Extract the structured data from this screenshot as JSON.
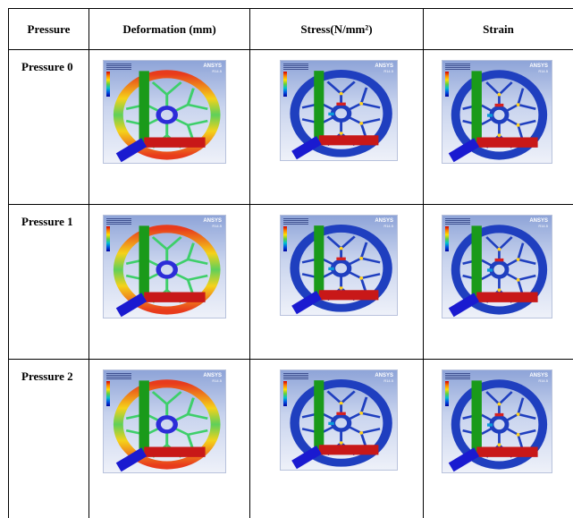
{
  "table": {
    "headers": [
      "Pressure",
      "Deformation (mm)",
      "Stress(N/mm²)",
      "Strain"
    ],
    "rows": [
      {
        "label": "Pressure 0"
      },
      {
        "label": "Pressure 1"
      },
      {
        "label": "Pressure 2"
      }
    ],
    "brand": "ANSYS",
    "brand_version": "R14.5"
  },
  "colors": {
    "deformation_rim": "#e83b1c",
    "deformation_spoke": "#3ecf6a",
    "stress_body": "#1f3fbf",
    "stress_hotspot": "#ffd21f",
    "strain_body": "#1f3fbf"
  },
  "icons": [
    "wheel-contour-plot-icon",
    "triad-axes-icon",
    "color-legend-icon"
  ]
}
